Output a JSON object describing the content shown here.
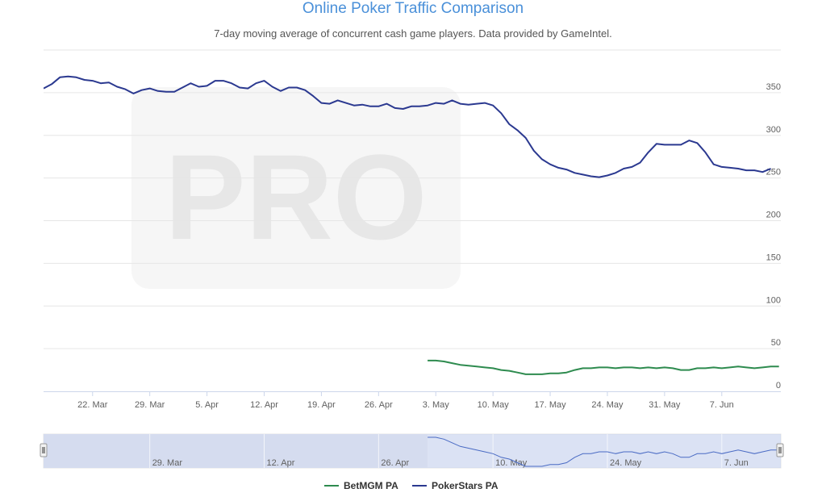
{
  "chart_data": {
    "type": "line",
    "title": "Online Poker Traffic Comparison",
    "subtitle": "7-day moving average of concurrent cash game players. Data provided by GameIntel.",
    "watermark": "PRO",
    "xlabel": "",
    "ylabel": "",
    "ylim": [
      0,
      400
    ],
    "yticks": [
      0,
      50,
      100,
      150,
      200,
      250,
      300,
      350
    ],
    "grid": true,
    "legend_position": "bottom-center",
    "x_start": "2021-03-16",
    "x_end": "2021-06-12",
    "xtick_labels": [
      {
        "date": "2021-03-22",
        "label": "22. Mar"
      },
      {
        "date": "2021-03-29",
        "label": "29. Mar"
      },
      {
        "date": "2021-04-05",
        "label": "5. Apr"
      },
      {
        "date": "2021-04-12",
        "label": "12. Apr"
      },
      {
        "date": "2021-04-19",
        "label": "19. Apr"
      },
      {
        "date": "2021-04-26",
        "label": "26. Apr"
      },
      {
        "date": "2021-05-03",
        "label": "3. May"
      },
      {
        "date": "2021-05-10",
        "label": "10. May"
      },
      {
        "date": "2021-05-17",
        "label": "17. May"
      },
      {
        "date": "2021-05-24",
        "label": "24. May"
      },
      {
        "date": "2021-05-31",
        "label": "31. May"
      },
      {
        "date": "2021-06-07",
        "label": "7. Jun"
      }
    ],
    "navigator": {
      "selected_start": "2021-05-02",
      "tick_labels": [
        {
          "date": "2021-03-29",
          "label": "29. Mar"
        },
        {
          "date": "2021-04-12",
          "label": "12. Apr"
        },
        {
          "date": "2021-04-26",
          "label": "26. Apr"
        },
        {
          "date": "2021-05-10",
          "label": "10. May"
        },
        {
          "date": "2021-05-24",
          "label": "24. May"
        },
        {
          "date": "2021-06-07",
          "label": "7. Jun"
        }
      ]
    },
    "series": [
      {
        "name": "BetMGM PA",
        "color": "#2e8b4f",
        "points": [
          [
            "2021-05-02",
            36
          ],
          [
            "2021-05-03",
            36
          ],
          [
            "2021-05-04",
            35
          ],
          [
            "2021-05-05",
            33
          ],
          [
            "2021-05-06",
            31
          ],
          [
            "2021-05-07",
            30
          ],
          [
            "2021-05-08",
            29
          ],
          [
            "2021-05-09",
            28
          ],
          [
            "2021-05-10",
            27
          ],
          [
            "2021-05-11",
            25
          ],
          [
            "2021-05-12",
            24
          ],
          [
            "2021-05-13",
            22
          ],
          [
            "2021-05-14",
            20
          ],
          [
            "2021-05-15",
            20
          ],
          [
            "2021-05-16",
            20
          ],
          [
            "2021-05-17",
            21
          ],
          [
            "2021-05-18",
            21
          ],
          [
            "2021-05-19",
            22
          ],
          [
            "2021-05-20",
            25
          ],
          [
            "2021-05-21",
            27
          ],
          [
            "2021-05-22",
            27
          ],
          [
            "2021-05-23",
            28
          ],
          [
            "2021-05-24",
            28
          ],
          [
            "2021-05-25",
            27
          ],
          [
            "2021-05-26",
            28
          ],
          [
            "2021-05-27",
            28
          ],
          [
            "2021-05-28",
            27
          ],
          [
            "2021-05-29",
            28
          ],
          [
            "2021-05-30",
            27
          ],
          [
            "2021-05-31",
            28
          ],
          [
            "2021-06-01",
            27
          ],
          [
            "2021-06-02",
            25
          ],
          [
            "2021-06-03",
            25
          ],
          [
            "2021-06-04",
            27
          ],
          [
            "2021-06-05",
            27
          ],
          [
            "2021-06-06",
            28
          ],
          [
            "2021-06-07",
            27
          ],
          [
            "2021-06-08",
            28
          ],
          [
            "2021-06-09",
            29
          ],
          [
            "2021-06-10",
            28
          ],
          [
            "2021-06-11",
            27
          ],
          [
            "2021-06-12",
            28
          ],
          [
            "2021-06-13",
            29
          ],
          [
            "2021-06-14",
            29
          ]
        ]
      },
      {
        "name": "PokerStars PA",
        "color": "#2b3990",
        "points": [
          [
            "2021-03-16",
            355
          ],
          [
            "2021-03-17",
            360
          ],
          [
            "2021-03-18",
            368
          ],
          [
            "2021-03-19",
            369
          ],
          [
            "2021-03-20",
            368
          ],
          [
            "2021-03-21",
            365
          ],
          [
            "2021-03-22",
            364
          ],
          [
            "2021-03-23",
            361
          ],
          [
            "2021-03-24",
            362
          ],
          [
            "2021-03-25",
            357
          ],
          [
            "2021-03-26",
            354
          ],
          [
            "2021-03-27",
            349
          ],
          [
            "2021-03-28",
            353
          ],
          [
            "2021-03-29",
            355
          ],
          [
            "2021-03-30",
            352
          ],
          [
            "2021-03-31",
            351
          ],
          [
            "2021-04-01",
            351
          ],
          [
            "2021-04-02",
            356
          ],
          [
            "2021-04-03",
            361
          ],
          [
            "2021-04-04",
            357
          ],
          [
            "2021-04-05",
            358
          ],
          [
            "2021-04-06",
            364
          ],
          [
            "2021-04-07",
            364
          ],
          [
            "2021-04-08",
            361
          ],
          [
            "2021-04-09",
            356
          ],
          [
            "2021-04-10",
            355
          ],
          [
            "2021-04-11",
            361
          ],
          [
            "2021-04-12",
            364
          ],
          [
            "2021-04-13",
            357
          ],
          [
            "2021-04-14",
            352
          ],
          [
            "2021-04-15",
            356
          ],
          [
            "2021-04-16",
            356
          ],
          [
            "2021-04-17",
            353
          ],
          [
            "2021-04-18",
            346
          ],
          [
            "2021-04-19",
            338
          ],
          [
            "2021-04-20",
            337
          ],
          [
            "2021-04-21",
            341
          ],
          [
            "2021-04-22",
            338
          ],
          [
            "2021-04-23",
            335
          ],
          [
            "2021-04-24",
            336
          ],
          [
            "2021-04-25",
            334
          ],
          [
            "2021-04-26",
            334
          ],
          [
            "2021-04-27",
            337
          ],
          [
            "2021-04-28",
            332
          ],
          [
            "2021-04-29",
            331
          ],
          [
            "2021-04-30",
            334
          ],
          [
            "2021-05-01",
            334
          ],
          [
            "2021-05-02",
            335
          ],
          [
            "2021-05-03",
            338
          ],
          [
            "2021-05-04",
            337
          ],
          [
            "2021-05-05",
            341
          ],
          [
            "2021-05-06",
            337
          ],
          [
            "2021-05-07",
            336
          ],
          [
            "2021-05-08",
            337
          ],
          [
            "2021-05-09",
            338
          ],
          [
            "2021-05-10",
            335
          ],
          [
            "2021-05-11",
            326
          ],
          [
            "2021-05-12",
            313
          ],
          [
            "2021-05-13",
            306
          ],
          [
            "2021-05-14",
            297
          ],
          [
            "2021-05-15",
            282
          ],
          [
            "2021-05-16",
            272
          ],
          [
            "2021-05-17",
            266
          ],
          [
            "2021-05-18",
            262
          ],
          [
            "2021-05-19",
            260
          ],
          [
            "2021-05-20",
            256
          ],
          [
            "2021-05-21",
            254
          ],
          [
            "2021-05-22",
            252
          ],
          [
            "2021-05-23",
            251
          ],
          [
            "2021-05-24",
            253
          ],
          [
            "2021-05-25",
            256
          ],
          [
            "2021-05-26",
            261
          ],
          [
            "2021-05-27",
            263
          ],
          [
            "2021-05-28",
            268
          ],
          [
            "2021-05-29",
            280
          ],
          [
            "2021-05-30",
            290
          ],
          [
            "2021-05-31",
            289
          ],
          [
            "2021-06-01",
            289
          ],
          [
            "2021-06-02",
            289
          ],
          [
            "2021-06-03",
            294
          ],
          [
            "2021-06-04",
            291
          ],
          [
            "2021-06-05",
            280
          ],
          [
            "2021-06-06",
            266
          ],
          [
            "2021-06-07",
            263
          ],
          [
            "2021-06-08",
            262
          ],
          [
            "2021-06-09",
            261
          ],
          [
            "2021-06-10",
            259
          ],
          [
            "2021-06-11",
            259
          ],
          [
            "2021-06-12",
            257
          ],
          [
            "2021-06-13",
            261
          ]
        ]
      }
    ]
  }
}
